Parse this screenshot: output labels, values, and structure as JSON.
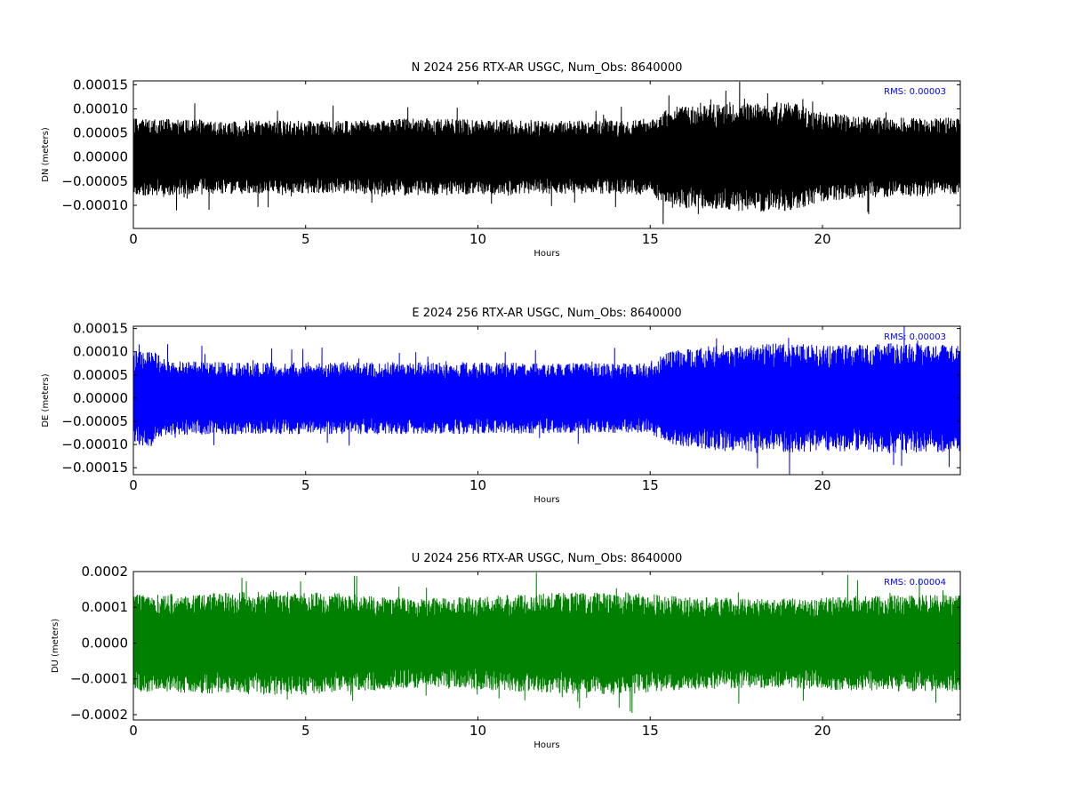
{
  "chart_data": [
    {
      "type": "line",
      "title": "N 2024 256 RTX-AR  USGC, Num_Obs: 8640000",
      "xlabel": "Hours",
      "ylabel": "DN (meters)",
      "xlim": [
        0,
        24
      ],
      "ylim": [
        -0.000148,
        0.000158
      ],
      "xticks": [
        0,
        5,
        10,
        15,
        20
      ],
      "xtick_labels": [
        "0",
        "5",
        "10",
        "15",
        "20"
      ],
      "yticks": [
        0.00015,
        0.0001,
        5e-05,
        0.0,
        -5e-05,
        -0.0001
      ],
      "ytick_labels": [
        "0.00015",
        "0.00010",
        "0.00005",
        "0.00000",
        "−0.00005",
        "−0.00010"
      ],
      "series_color": "#000000",
      "rms_label": "RMS:  0.00003",
      "rms_color": "#0000ff",
      "envelope_hours": [
        0,
        2,
        4,
        6,
        8,
        10,
        12,
        14,
        15,
        15.5,
        17,
        19,
        20,
        21,
        22,
        24
      ],
      "envelope_amplitude": [
        8e-05,
        7.8e-05,
        7.6e-05,
        7.5e-05,
        8e-05,
        7.8e-05,
        7.7e-05,
        7.6e-05,
        8e-05,
        0.000105,
        0.00011,
        0.000115,
        9.5e-05,
        8.5e-05,
        8.2e-05,
        8.2e-05
      ]
    },
    {
      "type": "line",
      "title": "E 2024 256 RTX-AR  USGC, Num_Obs: 8640000",
      "xlabel": "Hours",
      "ylabel": "DE (meters)",
      "xlim": [
        0,
        24
      ],
      "ylim": [
        -0.000165,
        0.000155
      ],
      "xticks": [
        0,
        5,
        10,
        15,
        20
      ],
      "xtick_labels": [
        "0",
        "5",
        "10",
        "15",
        "20"
      ],
      "yticks": [
        0.00015,
        0.0001,
        5e-05,
        0.0,
        -5e-05,
        -0.0001,
        -0.00015
      ],
      "ytick_labels": [
        "0.00015",
        "0.00010",
        "0.00005",
        "0.00000",
        "−0.00005",
        "−0.00010",
        "−0.00015"
      ],
      "series_color": "#0000ff",
      "rms_label": "RMS:  0.00003",
      "rms_color": "#0000ff",
      "envelope_hours": [
        0,
        0.5,
        1,
        3,
        6,
        9,
        12,
        14,
        15,
        15.5,
        17,
        19,
        20,
        21,
        22,
        24
      ],
      "envelope_amplitude": [
        0.0001,
        0.000105,
        8e-05,
        7.8e-05,
        7.8e-05,
        7.8e-05,
        7.6e-05,
        7.5e-05,
        7.5e-05,
        0.0001,
        0.000115,
        0.000118,
        0.000115,
        0.000115,
        0.00012,
        0.000115
      ]
    },
    {
      "type": "line",
      "title": "U 2024 256 RTX-AR  USGC, Num_Obs: 8640000",
      "xlabel": "Hours",
      "ylabel": "DU (meters)",
      "xlim": [
        0,
        24
      ],
      "ylim": [
        -0.000215,
        0.0002
      ],
      "xticks": [
        0,
        5,
        10,
        15,
        20
      ],
      "xtick_labels": [
        "0",
        "5",
        "10",
        "15",
        "20"
      ],
      "yticks": [
        0.0002,
        0.0001,
        0.0,
        -0.0001,
        -0.0002
      ],
      "ytick_labels": [
        "0.0002",
        "0.0001",
        "0.0000",
        "−0.0001",
        "−0.0002"
      ],
      "series_color": "#008000",
      "rms_label": "RMS:  0.00004",
      "rms_color": "#0000ff",
      "envelope_hours": [
        0,
        2,
        4,
        6,
        8,
        10,
        12,
        14,
        16,
        18,
        20,
        22,
        24
      ],
      "envelope_amplitude": [
        0.000135,
        0.00014,
        0.000145,
        0.00014,
        0.000125,
        0.00013,
        0.00014,
        0.000145,
        0.00013,
        0.000125,
        0.00013,
        0.000135,
        0.000135
      ]
    }
  ]
}
